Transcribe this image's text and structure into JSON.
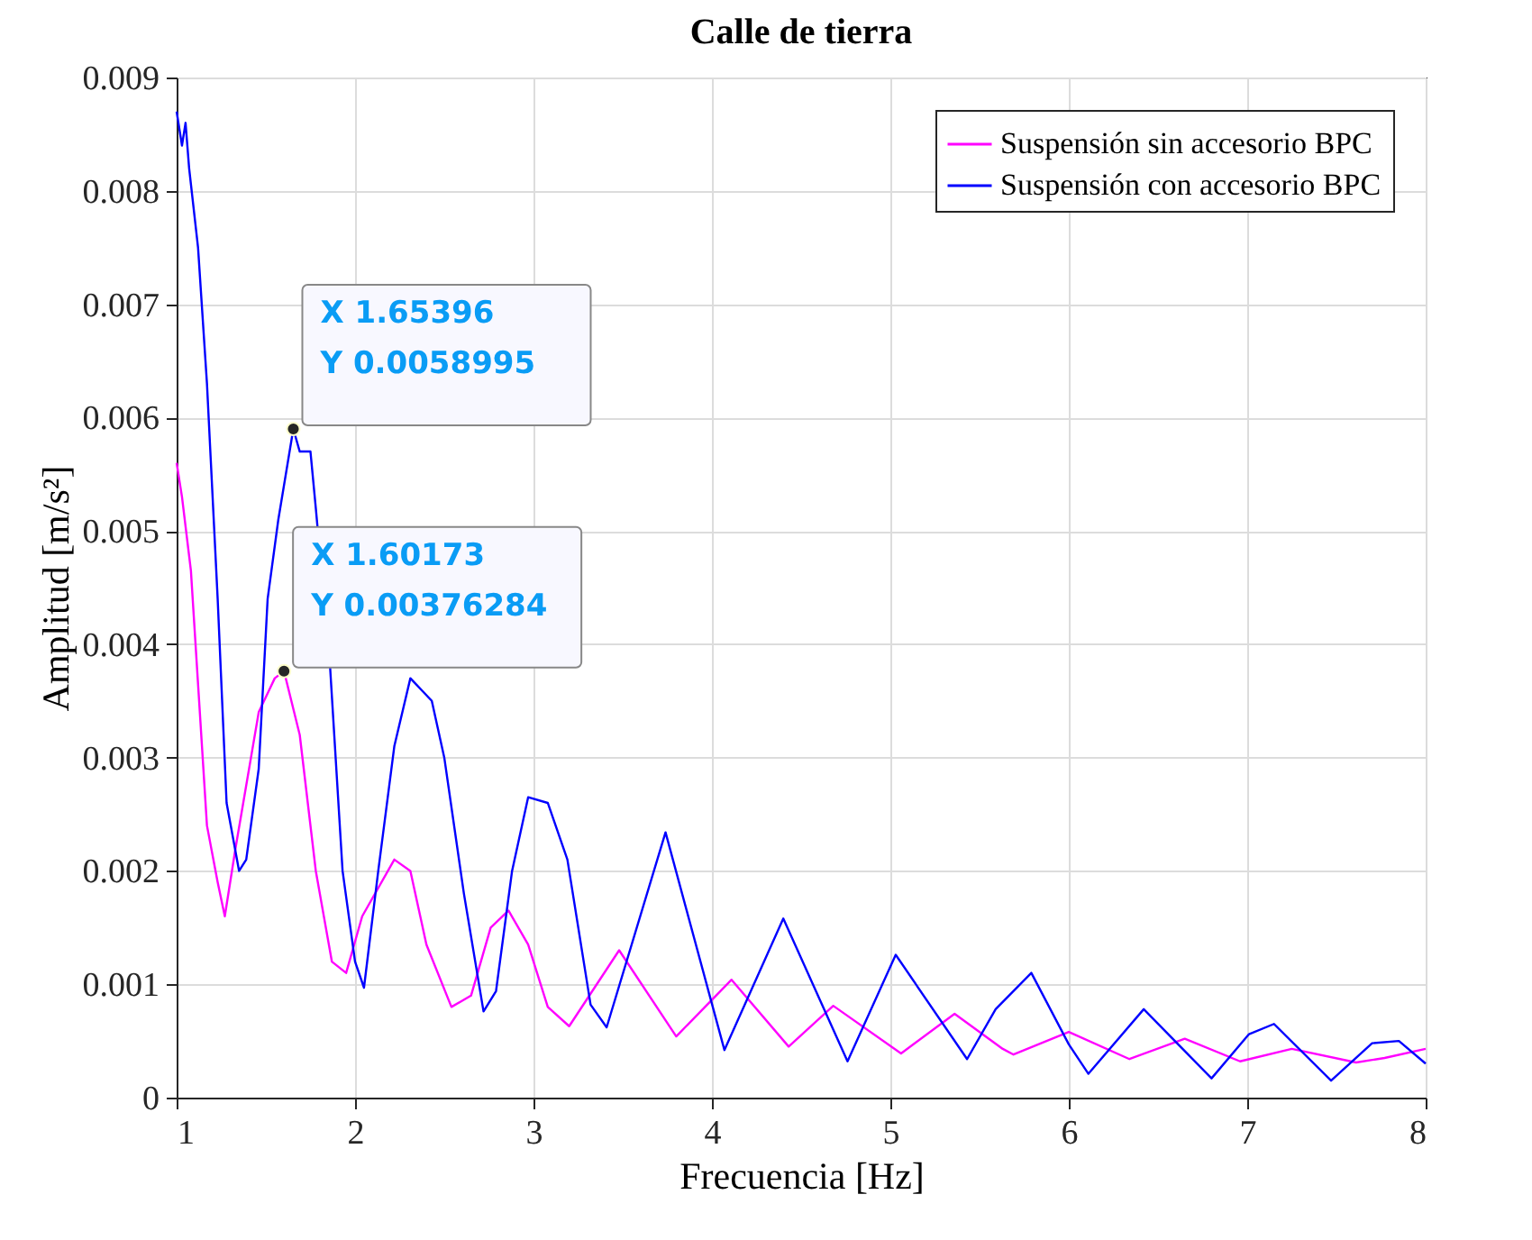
{
  "chart_data": {
    "type": "line",
    "title": "Calle de tierra",
    "xlabel": "Frecuencia [Hz]",
    "ylabel": "Amplitud [m/s²]",
    "xlim": [
      1,
      8
    ],
    "ylim": [
      0,
      0.009
    ],
    "xticks": [
      1,
      2,
      3,
      4,
      5,
      6,
      7,
      8
    ],
    "yticks": [
      0,
      0.001,
      0.002,
      0.003,
      0.004,
      0.005,
      0.006,
      0.007,
      0.008,
      0.009
    ],
    "grid": true,
    "legend": "top right",
    "line_style": "solid",
    "marker": "none",
    "series": [
      {
        "name": "Suspensión sin accesorio BPC",
        "color": "#ff00ff",
        "x": [
          1.0,
          1.03,
          1.08,
          1.17,
          1.23,
          1.27,
          1.33,
          1.46,
          1.55,
          1.60173,
          1.69,
          1.78,
          1.87,
          1.95,
          2.04,
          2.22,
          2.31,
          2.4,
          2.54,
          2.65,
          2.76,
          2.86,
          2.97,
          3.08,
          3.2,
          3.48,
          3.8,
          4.11,
          4.43,
          4.68,
          5.06,
          5.36,
          5.63,
          5.69,
          6.0,
          6.34,
          6.65,
          6.96,
          7.25,
          7.61,
          7.77,
          8.0
        ],
        "values": [
          0.0056,
          0.0053,
          0.00465,
          0.0024,
          0.0019,
          0.0016,
          0.0022,
          0.0034,
          0.0037,
          0.00376284,
          0.0032,
          0.002,
          0.0012,
          0.0011,
          0.0016,
          0.0021,
          0.002,
          0.00135,
          0.0008,
          0.0009,
          0.0015,
          0.00165,
          0.00135,
          0.0008,
          0.00063,
          0.0013,
          0.00054,
          0.00104,
          0.00045,
          0.00081,
          0.00039,
          0.00074,
          0.00043,
          0.00038,
          0.00058,
          0.00034,
          0.00052,
          0.00032,
          0.00043,
          0.00031,
          0.00035,
          0.00043
        ]
      },
      {
        "name": "Suspensión con accesorio BPC",
        "color": "#0000ff",
        "x": [
          1.0,
          1.03,
          1.05,
          1.07,
          1.12,
          1.17,
          1.23,
          1.28,
          1.35,
          1.39,
          1.46,
          1.51,
          1.57,
          1.65396,
          1.69,
          1.75,
          1.78,
          1.86,
          1.93,
          2.0,
          2.05,
          2.13,
          2.22,
          2.31,
          2.43,
          2.5,
          2.61,
          2.72,
          2.79,
          2.88,
          2.97,
          3.08,
          3.19,
          3.32,
          3.41,
          3.74,
          4.07,
          4.4,
          4.76,
          5.03,
          5.43,
          5.59,
          5.79,
          6.0,
          6.11,
          6.42,
          6.8,
          7.01,
          7.15,
          7.47,
          7.7,
          7.85,
          8.0
        ],
        "values": [
          0.0087,
          0.0084,
          0.0086,
          0.0082,
          0.0075,
          0.0063,
          0.0044,
          0.0026,
          0.002,
          0.0021,
          0.0029,
          0.0044,
          0.0051,
          0.0058995,
          0.0057,
          0.0057,
          0.0052,
          0.0038,
          0.002,
          0.0012,
          0.00097,
          0.002,
          0.0031,
          0.0037,
          0.0035,
          0.003,
          0.0018,
          0.00076,
          0.00094,
          0.002,
          0.00265,
          0.0026,
          0.0021,
          0.00082,
          0.00062,
          0.00234,
          0.00042,
          0.00158,
          0.00032,
          0.00126,
          0.00034,
          0.00078,
          0.0011,
          0.00047,
          0.00021,
          0.00078,
          0.00017,
          0.00056,
          0.00065,
          0.00015,
          0.00048,
          0.0005,
          0.0003
        ]
      }
    ],
    "annotations": [
      {
        "text": "X 1.65396\nY 0.0058995",
        "x": 1.65396,
        "y": 0.0058995
      },
      {
        "text": "X 1.60173\nY 0.00376284",
        "x": 1.60173,
        "y": 0.00376284
      }
    ]
  }
}
